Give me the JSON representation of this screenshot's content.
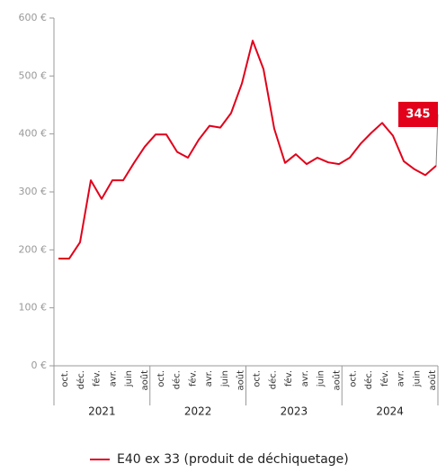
{
  "chart_data": {
    "type": "line",
    "x_axis": {
      "labels": [
        "oct.",
        "déc.",
        "fév.",
        "avr.",
        "juin",
        "août"
      ],
      "groups": [
        "2021",
        "2022",
        "2023",
        "2024"
      ]
    },
    "series": [
      {
        "name": "E40 ex 33 (produit de déchiquetage)",
        "color": "#e2001a",
        "values": [
          185,
          185,
          213,
          320,
          288,
          320,
          320,
          350,
          378,
          399,
          399,
          369,
          359,
          390,
          414,
          411,
          436,
          487,
          561,
          512,
          409,
          350,
          365,
          348,
          359,
          351,
          348,
          359,
          383,
          402,
          419,
          397,
          353,
          339,
          329,
          345
        ]
      }
    ],
    "annotations": [
      {
        "label": "345",
        "value": 345
      }
    ],
    "ylim": [
      0,
      600
    ],
    "yticks": [
      {
        "value": 0,
        "label": "0 €"
      },
      {
        "value": 100,
        "label": "100 €"
      },
      {
        "value": 200,
        "label": "200 €"
      },
      {
        "value": 300,
        "label": "300 €"
      },
      {
        "value": 400,
        "label": "400 €"
      },
      {
        "value": 500,
        "label": "500 €"
      },
      {
        "value": 600,
        "label": "600 €"
      }
    ]
  }
}
